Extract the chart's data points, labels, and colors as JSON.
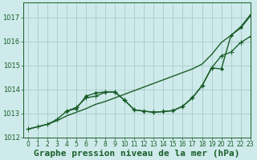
{
  "xlabel": "Graphe pression niveau de la mer (hPa)",
  "background_color": "#ceeaea",
  "grid_color": "#a8cccc",
  "line_color": "#1a5e2a",
  "xlim": [
    -0.5,
    23
  ],
  "ylim": [
    1012.0,
    1017.6
  ],
  "yticks": [
    1012,
    1013,
    1014,
    1015,
    1016,
    1017
  ],
  "xticks": [
    0,
    1,
    2,
    3,
    4,
    5,
    6,
    7,
    8,
    9,
    10,
    11,
    12,
    13,
    14,
    15,
    16,
    17,
    18,
    19,
    20,
    21,
    22,
    23
  ],
  "line1_x": [
    0,
    1,
    2,
    3,
    4,
    5,
    6,
    7,
    8,
    9,
    10,
    11,
    12,
    13,
    14,
    15,
    16,
    17,
    18,
    19,
    20,
    21,
    22,
    23
  ],
  "line1_y": [
    1012.35,
    1012.45,
    1012.55,
    1012.7,
    1012.9,
    1013.05,
    1013.2,
    1013.38,
    1013.5,
    1013.65,
    1013.8,
    1013.95,
    1014.1,
    1014.25,
    1014.4,
    1014.55,
    1014.7,
    1014.85,
    1015.05,
    1015.45,
    1015.95,
    1016.25,
    1016.55,
    1017.05
  ],
  "line2_x": [
    0,
    1,
    2,
    3,
    4,
    5,
    6,
    7,
    8,
    9,
    10,
    11,
    12,
    13,
    14,
    15,
    16,
    17,
    18,
    19,
    20,
    21,
    22,
    23
  ],
  "line2_y": [
    1012.35,
    1012.45,
    1012.55,
    1012.75,
    1013.1,
    1013.25,
    1013.65,
    1013.72,
    1013.88,
    1013.9,
    1013.55,
    1013.15,
    1013.1,
    1013.05,
    1013.08,
    1013.12,
    1013.3,
    1013.65,
    1014.15,
    1014.9,
    1015.4,
    1015.55,
    1015.95,
    1016.2
  ],
  "line3_x": [
    4,
    5,
    6,
    7,
    8,
    9,
    10,
    11,
    12,
    13,
    14,
    15,
    16,
    17,
    18,
    19,
    20,
    21,
    22,
    23
  ],
  "line3_y": [
    1013.1,
    1013.2,
    1013.72,
    1013.85,
    1013.9,
    1013.88,
    1013.55,
    1013.15,
    1013.1,
    1013.05,
    1013.08,
    1013.12,
    1013.3,
    1013.65,
    1014.15,
    1014.9,
    1014.85,
    1016.25,
    1016.6,
    1017.1
  ],
  "marker_size": 3.0,
  "linewidth": 1.0,
  "xlabel_fontsize": 8,
  "tick_fontsize": 6
}
